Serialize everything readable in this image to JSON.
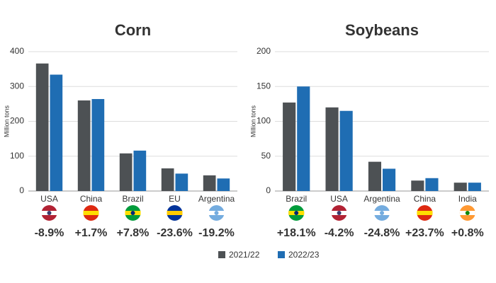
{
  "chart_data": [
    {
      "type": "bar",
      "title": "Corn",
      "y_label": "Million tons",
      "categories": [
        "USA",
        "China",
        "Brazil",
        "EU",
        "Argentina"
      ],
      "series": [
        {
          "name": "2021/22",
          "color": "#4d5154",
          "values": [
            366,
            260,
            108,
            65,
            45
          ]
        },
        {
          "name": "2022/23",
          "color": "#1f6db3",
          "values": [
            334,
            264,
            116,
            50,
            36
          ]
        }
      ],
      "annotations": [
        "-8.9%",
        "+1.7%",
        "+7.8%",
        "-23.6%",
        "-19.2%"
      ],
      "ylim": [
        0,
        400
      ],
      "yticks": [
        0,
        100,
        200,
        300,
        400
      ],
      "grid": true
    },
    {
      "type": "bar",
      "title": "Soybeans",
      "y_label": "Million tons",
      "categories": [
        "Brazil",
        "USA",
        "Argentina",
        "China",
        "India"
      ],
      "series": [
        {
          "color": "#4d5154",
          "values": [
            127,
            120,
            42,
            15,
            12
          ]
        },
        {
          "color": "#1f6db3",
          "values": [
            150,
            115,
            32,
            18.5,
            12
          ]
        }
      ],
      "annotations": [
        "+18.1%",
        "-4.2%",
        "-24.8%",
        "+23.7%",
        "+0.8%"
      ],
      "ylim": [
        0,
        200
      ],
      "yticks": [
        0,
        50,
        100,
        150,
        200
      ],
      "grid": true
    }
  ]
}
